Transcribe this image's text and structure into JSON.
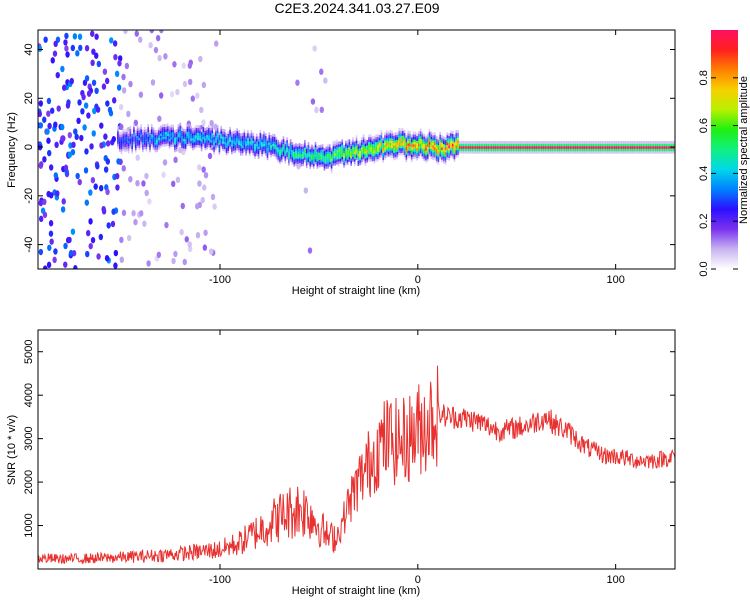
{
  "title": "C2E3.2024.341.03.27.E09",
  "colors": {
    "snr_line": "#e8312f",
    "frame": "#000000",
    "background": "#ffffff"
  },
  "chart_data": [
    {
      "type": "heatmap",
      "xlabel": "Height of straight line (km)",
      "ylabel": "Frequency (Hz)",
      "xlim": [
        -192,
        130
      ],
      "ylim": [
        -50,
        48
      ],
      "x_ticks": [
        -100,
        0,
        100
      ],
      "y_ticks": [
        -40,
        -20,
        0,
        20,
        40
      ],
      "colorbar": {
        "label": "Normalized spectral amplitude",
        "range": [
          0,
          1
        ],
        "ticks": [
          0.0,
          0.2,
          0.4,
          0.6,
          0.8
        ],
        "stops": [
          "#ffffff",
          "#c8b4f0",
          "#7a32f0",
          "#2c10ff",
          "#0080ff",
          "#00d8e8",
          "#10f080",
          "#20f010",
          "#b8f000",
          "#f8d000",
          "#ff8000",
          "#ff2020",
          "#ff1060"
        ]
      },
      "ridge": {
        "x": [
          -150,
          -135,
          -120,
          -100,
          -80,
          -65,
          -55,
          -45,
          -35,
          -25,
          -15,
          -5,
          0,
          10,
          20,
          40,
          60,
          80,
          100,
          130
        ],
        "center_hz": [
          3,
          4,
          4,
          3,
          1,
          -2,
          -3,
          -4,
          -2,
          -1,
          1,
          1,
          1,
          0,
          0,
          0,
          0,
          0,
          0,
          0
        ],
        "amplitude": [
          0.3,
          0.4,
          0.45,
          0.45,
          0.45,
          0.5,
          0.55,
          0.6,
          0.7,
          0.75,
          0.8,
          0.85,
          0.85,
          0.9,
          0.95,
          1,
          1,
          1,
          1,
          1
        ]
      }
    },
    {
      "type": "line",
      "xlabel": "Height of straight line (km)",
      "ylabel": "SNR (10 * v/v)",
      "xlim": [
        -192,
        130
      ],
      "ylim": [
        0,
        5500
      ],
      "x_ticks": [
        -100,
        0,
        100
      ],
      "y_ticks": [
        1000,
        2000,
        3000,
        4000,
        5000
      ],
      "series": [
        {
          "x": [
            -192,
            -180,
            -170,
            -160,
            -150,
            -140,
            -130,
            -120,
            -110,
            -100,
            -90,
            -80,
            -70,
            -60,
            -55,
            -50,
            -45,
            -40,
            -35,
            -30,
            -25,
            -20,
            -15,
            -10,
            -5,
            0,
            5,
            10,
            15,
            20,
            25,
            30,
            35,
            40,
            45,
            50,
            55,
            60,
            65,
            70,
            75,
            80,
            85,
            90,
            95,
            100,
            110,
            120,
            130
          ],
          "values": [
            250,
            230,
            240,
            250,
            270,
            290,
            320,
            350,
            400,
            450,
            600,
            900,
            1200,
            1400,
            1300,
            1000,
            700,
            800,
            1500,
            2000,
            2400,
            2800,
            3000,
            2900,
            3000,
            3200,
            3400,
            3600,
            3500,
            3500,
            3450,
            3400,
            3300,
            3200,
            3200,
            3250,
            3300,
            3400,
            3500,
            3300,
            3200,
            3000,
            2800,
            2700,
            2600,
            2600,
            2500,
            2500,
            2600
          ]
        }
      ]
    }
  ]
}
